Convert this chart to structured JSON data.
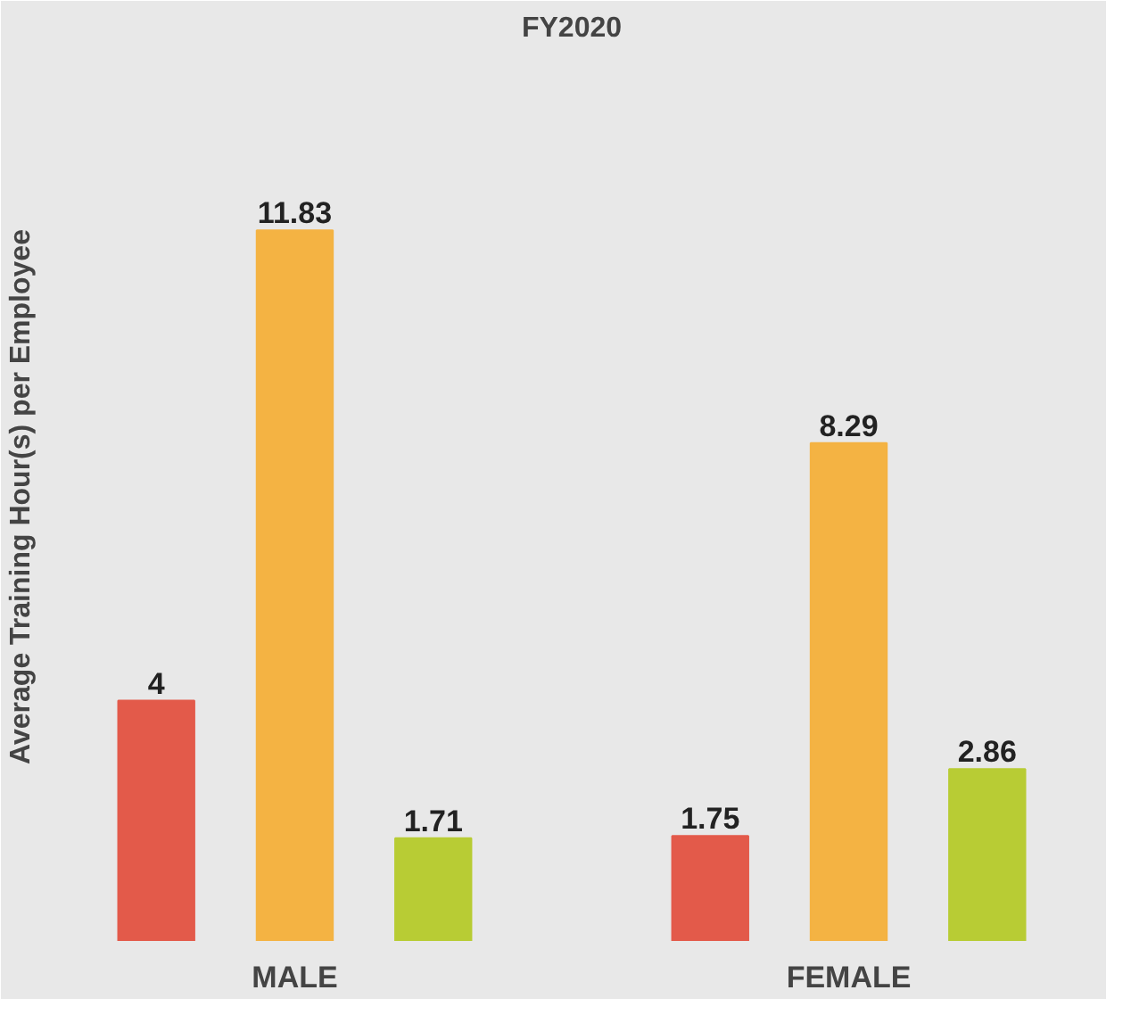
{
  "chart_data": {
    "type": "bar",
    "title": "FY2020",
    "ylabel": "Average Training Hour(s) per Employee",
    "categories": [
      "MALE",
      "FEMALE"
    ],
    "data_labels": true,
    "series": [
      {
        "color": "#e35a4a",
        "values": [
          4,
          1.75
        ]
      },
      {
        "color": "#f4b343",
        "values": [
          11.83,
          8.29
        ]
      },
      {
        "color": "#b8cc34",
        "values": [
          1.71,
          2.86
        ]
      }
    ]
  }
}
